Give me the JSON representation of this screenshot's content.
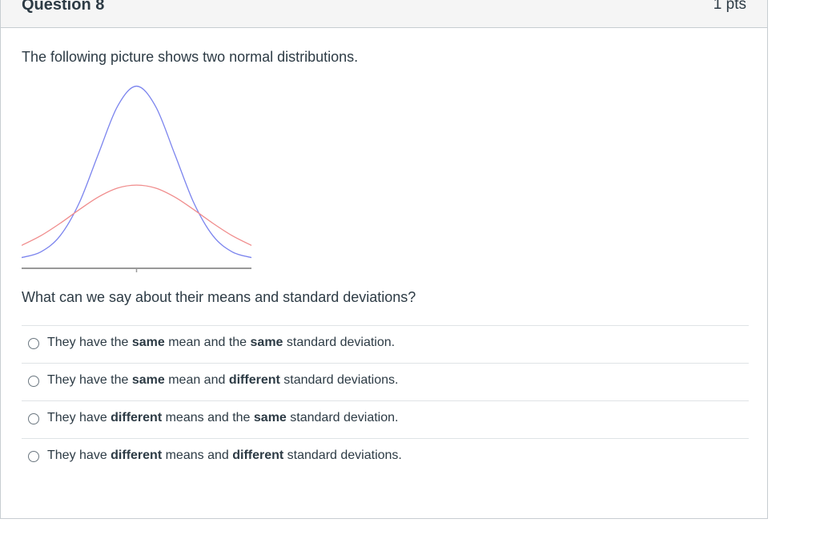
{
  "question": {
    "title": "Question 8",
    "points": "1 pts",
    "prompt": "The following picture shows two normal distributions.",
    "sub_prompt": "What can we say about their means and standard deviations?"
  },
  "chart_data": {
    "type": "line",
    "title": "",
    "xlabel": "",
    "ylabel": "",
    "x": [
      -3,
      -2.5,
      -2,
      -1.5,
      -1,
      -0.5,
      0,
      0.5,
      1,
      1.5,
      2,
      2.5,
      3
    ],
    "series": [
      {
        "color": "#7b84ee",
        "values": [
          0.0089,
          0.035,
          0.108,
          0.259,
          0.4839,
          0.7041,
          0.7979,
          0.7041,
          0.4839,
          0.259,
          0.108,
          0.035,
          0.0089
        ]
      },
      {
        "color": "#f08c8c",
        "values": [
          0.0648,
          0.1093,
          0.1659,
          0.2288,
          0.2874,
          0.3287,
          0.3425,
          0.3287,
          0.2874,
          0.2288,
          0.1659,
          0.1093,
          0.0648
        ]
      }
    ],
    "xlim": [
      -3,
      3
    ],
    "ylim": [
      0,
      0.8
    ],
    "grid": false,
    "legend": "none"
  },
  "answers": [
    {
      "parts": [
        {
          "text": "They have the ",
          "bold": false
        },
        {
          "text": "same",
          "bold": true
        },
        {
          "text": " mean and the ",
          "bold": false
        },
        {
          "text": "same",
          "bold": true
        },
        {
          "text": " standard deviation.",
          "bold": false
        }
      ]
    },
    {
      "parts": [
        {
          "text": "They have the ",
          "bold": false
        },
        {
          "text": "same",
          "bold": true
        },
        {
          "text": " mean and ",
          "bold": false
        },
        {
          "text": "different",
          "bold": true
        },
        {
          "text": " standard deviations.",
          "bold": false
        }
      ]
    },
    {
      "parts": [
        {
          "text": "They have ",
          "bold": false
        },
        {
          "text": "different",
          "bold": true
        },
        {
          "text": " means and the ",
          "bold": false
        },
        {
          "text": "same",
          "bold": true
        },
        {
          "text": " standard deviation.",
          "bold": false
        }
      ]
    },
    {
      "parts": [
        {
          "text": "They have ",
          "bold": false
        },
        {
          "text": "different",
          "bold": true
        },
        {
          "text": " means and ",
          "bold": false
        },
        {
          "text": "different",
          "bold": true
        },
        {
          "text": " standard deviations.",
          "bold": false
        }
      ]
    }
  ]
}
